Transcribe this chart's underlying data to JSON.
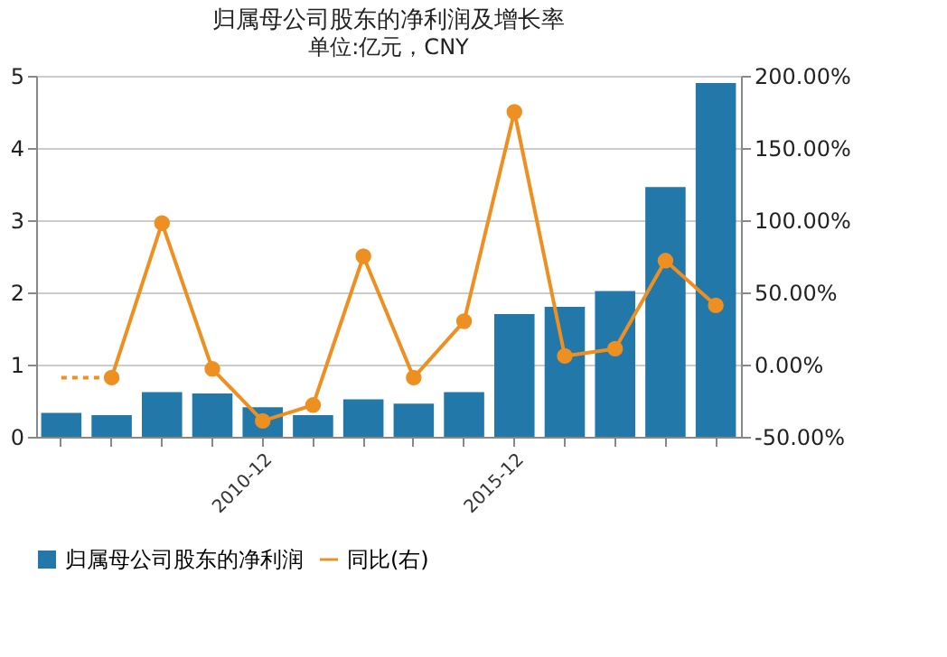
{
  "chart_data": {
    "type": "bar",
    "title": "归属母公司股东的净利润及增长率",
    "annotations": [
      "单位:亿元，CNY"
    ],
    "categories": [
      null,
      null,
      null,
      null,
      "2010-12",
      null,
      null,
      null,
      null,
      "2015-12",
      null,
      null,
      null,
      null
    ],
    "series": [
      {
        "name": "归属母公司股东的净利润",
        "color": "#2278a8",
        "values": [
          0.33,
          0.3,
          0.62,
          0.6,
          0.41,
          0.3,
          0.52,
          0.46,
          0.62,
          1.7,
          1.8,
          2.02,
          3.46,
          4.9
        ]
      },
      {
        "name": "同比(右)",
        "type": "line",
        "axis": "y2",
        "color": "#ee8f22",
        "marker": "circle",
        "line_style": "solid",
        "values": [
          null,
          -9,
          98,
          -3,
          -39,
          -28,
          75,
          -9,
          30,
          175,
          6,
          11,
          72,
          41
        ]
      },
      {
        "type": "line",
        "axis": "y2",
        "color": "#ee8f22",
        "line_style": "dotted",
        "values": [
          -9,
          -9,
          null,
          null,
          null,
          null,
          null,
          null,
          null,
          null,
          null,
          null,
          null,
          null
        ]
      }
    ],
    "ylim": [
      0,
      5
    ],
    "yticks": [
      0,
      1,
      2,
      3,
      4,
      5
    ],
    "y2lim": [
      -50,
      200
    ],
    "y2ticks": [
      {
        "value": -50,
        "label": "-50.00%"
      },
      {
        "value": 0,
        "label": "0.00%"
      },
      {
        "value": 50,
        "label": "50.00%"
      },
      {
        "value": 100,
        "label": "100.00%"
      },
      {
        "value": 150,
        "label": "150.00%"
      },
      {
        "value": 200,
        "label": "200.00%"
      }
    ],
    "grid": "y",
    "legend": "bottom"
  }
}
